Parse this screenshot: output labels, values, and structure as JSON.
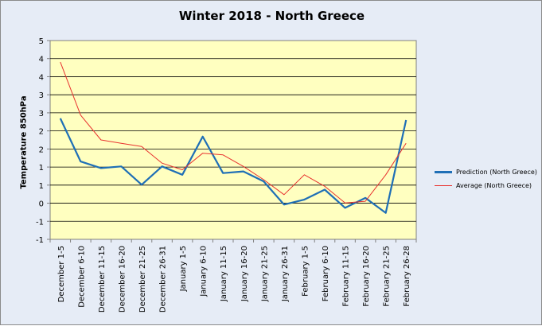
{
  "chart_data": {
    "type": "line",
    "title": "Winter 2018 - North Greece",
    "ylabel": "Temperature 850hPa",
    "xlabel": "",
    "ylim": [
      -1,
      5
    ],
    "yticks": [
      "5",
      "4",
      "4",
      "3",
      "3",
      "2",
      "2",
      "1",
      "1",
      "0",
      "-1",
      "-1"
    ],
    "categories": [
      "December 1-5",
      "December 6-10",
      "December 11-15",
      "December 16-20",
      "December 21-25",
      "December 26-31",
      "January 1-5",
      "January 6-10",
      "January 11-15",
      "January 16-20",
      "January 21-25",
      "January 26-31",
      "February 1-5",
      "February 6-10",
      "February 11-15",
      "February 16-20",
      "February 21-25",
      "February 26-28"
    ],
    "grid": true,
    "legend_position": "right",
    "series": [
      {
        "name": "Prediction (North Greece)",
        "color": "#1f6fb6",
        "values": [
          2.65,
          1.35,
          1.15,
          1.2,
          0.65,
          1.2,
          0.95,
          2.1,
          1.0,
          1.05,
          0.75,
          0.05,
          0.2,
          0.5,
          -0.05,
          0.25,
          -0.2,
          2.6
        ]
      },
      {
        "name": "Average (North Greece)",
        "color": "#e8322f",
        "values": [
          4.35,
          2.75,
          2.0,
          1.9,
          1.8,
          1.3,
          1.1,
          1.6,
          1.55,
          1.2,
          0.8,
          0.35,
          0.95,
          0.6,
          0.1,
          0.15,
          0.95,
          1.9
        ]
      }
    ]
  }
}
